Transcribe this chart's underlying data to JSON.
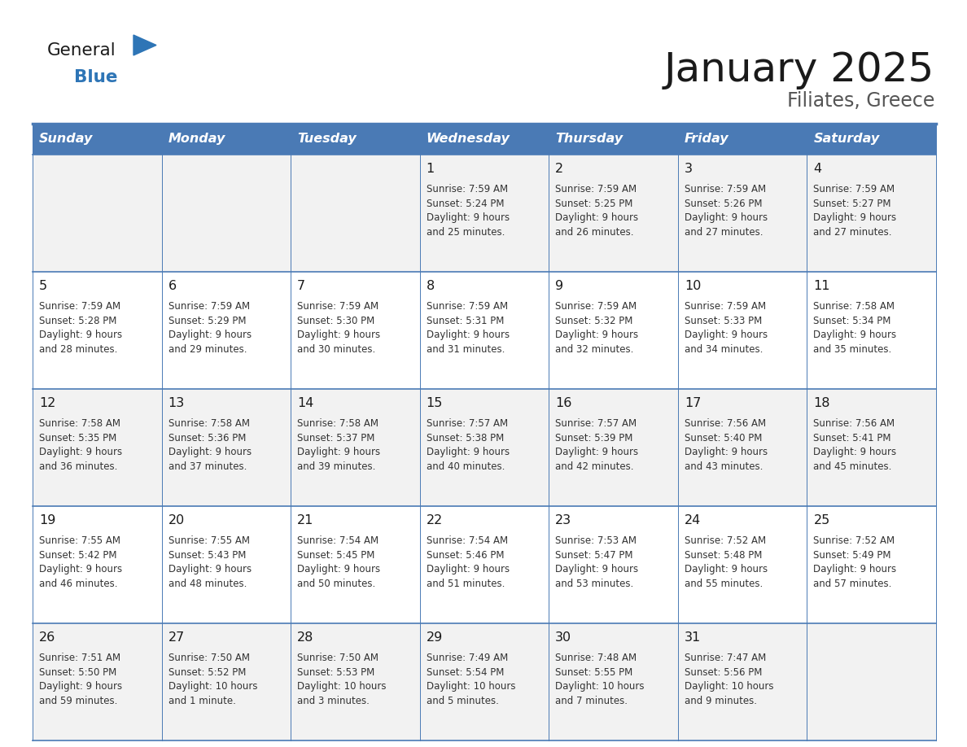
{
  "title": "January 2025",
  "subtitle": "Filiates, Greece",
  "header_color": "#4A7AB5",
  "header_text_color": "#FFFFFF",
  "cell_bg_row0": "#F2F2F2",
  "cell_bg_row1": "#FFFFFF",
  "cell_bg_row2": "#F2F2F2",
  "cell_bg_row3": "#FFFFFF",
  "cell_bg_row4": "#F2F2F2",
  "day_headers": [
    "Sunday",
    "Monday",
    "Tuesday",
    "Wednesday",
    "Thursday",
    "Friday",
    "Saturday"
  ],
  "days": [
    {
      "day": 1,
      "col": 3,
      "row": 0,
      "sunrise": "7:59 AM",
      "sunset": "5:24 PM",
      "daylight": "9 hours and 25 minutes."
    },
    {
      "day": 2,
      "col": 4,
      "row": 0,
      "sunrise": "7:59 AM",
      "sunset": "5:25 PM",
      "daylight": "9 hours and 26 minutes."
    },
    {
      "day": 3,
      "col": 5,
      "row": 0,
      "sunrise": "7:59 AM",
      "sunset": "5:26 PM",
      "daylight": "9 hours and 27 minutes."
    },
    {
      "day": 4,
      "col": 6,
      "row": 0,
      "sunrise": "7:59 AM",
      "sunset": "5:27 PM",
      "daylight": "9 hours and 27 minutes."
    },
    {
      "day": 5,
      "col": 0,
      "row": 1,
      "sunrise": "7:59 AM",
      "sunset": "5:28 PM",
      "daylight": "9 hours and 28 minutes."
    },
    {
      "day": 6,
      "col": 1,
      "row": 1,
      "sunrise": "7:59 AM",
      "sunset": "5:29 PM",
      "daylight": "9 hours and 29 minutes."
    },
    {
      "day": 7,
      "col": 2,
      "row": 1,
      "sunrise": "7:59 AM",
      "sunset": "5:30 PM",
      "daylight": "9 hours and 30 minutes."
    },
    {
      "day": 8,
      "col": 3,
      "row": 1,
      "sunrise": "7:59 AM",
      "sunset": "5:31 PM",
      "daylight": "9 hours and 31 minutes."
    },
    {
      "day": 9,
      "col": 4,
      "row": 1,
      "sunrise": "7:59 AM",
      "sunset": "5:32 PM",
      "daylight": "9 hours and 32 minutes."
    },
    {
      "day": 10,
      "col": 5,
      "row": 1,
      "sunrise": "7:59 AM",
      "sunset": "5:33 PM",
      "daylight": "9 hours and 34 minutes."
    },
    {
      "day": 11,
      "col": 6,
      "row": 1,
      "sunrise": "7:58 AM",
      "sunset": "5:34 PM",
      "daylight": "9 hours and 35 minutes."
    },
    {
      "day": 12,
      "col": 0,
      "row": 2,
      "sunrise": "7:58 AM",
      "sunset": "5:35 PM",
      "daylight": "9 hours and 36 minutes."
    },
    {
      "day": 13,
      "col": 1,
      "row": 2,
      "sunrise": "7:58 AM",
      "sunset": "5:36 PM",
      "daylight": "9 hours and 37 minutes."
    },
    {
      "day": 14,
      "col": 2,
      "row": 2,
      "sunrise": "7:58 AM",
      "sunset": "5:37 PM",
      "daylight": "9 hours and 39 minutes."
    },
    {
      "day": 15,
      "col": 3,
      "row": 2,
      "sunrise": "7:57 AM",
      "sunset": "5:38 PM",
      "daylight": "9 hours and 40 minutes."
    },
    {
      "day": 16,
      "col": 4,
      "row": 2,
      "sunrise": "7:57 AM",
      "sunset": "5:39 PM",
      "daylight": "9 hours and 42 minutes."
    },
    {
      "day": 17,
      "col": 5,
      "row": 2,
      "sunrise": "7:56 AM",
      "sunset": "5:40 PM",
      "daylight": "9 hours and 43 minutes."
    },
    {
      "day": 18,
      "col": 6,
      "row": 2,
      "sunrise": "7:56 AM",
      "sunset": "5:41 PM",
      "daylight": "9 hours and 45 minutes."
    },
    {
      "day": 19,
      "col": 0,
      "row": 3,
      "sunrise": "7:55 AM",
      "sunset": "5:42 PM",
      "daylight": "9 hours and 46 minutes."
    },
    {
      "day": 20,
      "col": 1,
      "row": 3,
      "sunrise": "7:55 AM",
      "sunset": "5:43 PM",
      "daylight": "9 hours and 48 minutes."
    },
    {
      "day": 21,
      "col": 2,
      "row": 3,
      "sunrise": "7:54 AM",
      "sunset": "5:45 PM",
      "daylight": "9 hours and 50 minutes."
    },
    {
      "day": 22,
      "col": 3,
      "row": 3,
      "sunrise": "7:54 AM",
      "sunset": "5:46 PM",
      "daylight": "9 hours and 51 minutes."
    },
    {
      "day": 23,
      "col": 4,
      "row": 3,
      "sunrise": "7:53 AM",
      "sunset": "5:47 PM",
      "daylight": "9 hours and 53 minutes."
    },
    {
      "day": 24,
      "col": 5,
      "row": 3,
      "sunrise": "7:52 AM",
      "sunset": "5:48 PM",
      "daylight": "9 hours and 55 minutes."
    },
    {
      "day": 25,
      "col": 6,
      "row": 3,
      "sunrise": "7:52 AM",
      "sunset": "5:49 PM",
      "daylight": "9 hours and 57 minutes."
    },
    {
      "day": 26,
      "col": 0,
      "row": 4,
      "sunrise": "7:51 AM",
      "sunset": "5:50 PM",
      "daylight": "9 hours and 59 minutes."
    },
    {
      "day": 27,
      "col": 1,
      "row": 4,
      "sunrise": "7:50 AM",
      "sunset": "5:52 PM",
      "daylight": "10 hours and 1 minute."
    },
    {
      "day": 28,
      "col": 2,
      "row": 4,
      "sunrise": "7:50 AM",
      "sunset": "5:53 PM",
      "daylight": "10 hours and 3 minutes."
    },
    {
      "day": 29,
      "col": 3,
      "row": 4,
      "sunrise": "7:49 AM",
      "sunset": "5:54 PM",
      "daylight": "10 hours and 5 minutes."
    },
    {
      "day": 30,
      "col": 4,
      "row": 4,
      "sunrise": "7:48 AM",
      "sunset": "5:55 PM",
      "daylight": "10 hours and 7 minutes."
    },
    {
      "day": 31,
      "col": 5,
      "row": 4,
      "sunrise": "7:47 AM",
      "sunset": "5:56 PM",
      "daylight": "10 hours and 9 minutes."
    }
  ],
  "num_rows": 5,
  "num_cols": 7,
  "logo_triangle_color": "#2E75B6",
  "logo_blue_color": "#2E75B6",
  "logo_general_color": "#1a1a1a",
  "title_color": "#1a1a1a",
  "subtitle_color": "#555555",
  "cell_text_color": "#333333",
  "cell_number_color": "#1a1a1a",
  "grid_line_color": "#4A7AB5",
  "separator_line_color": "#4A7AB5"
}
